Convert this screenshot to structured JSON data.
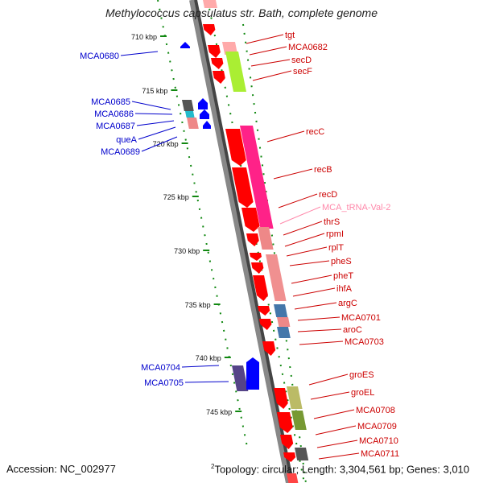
{
  "title": "Methylococcus capsulatus str. Bath, complete genome",
  "accession": "Accession: NC_002977",
  "topology_mark": "2",
  "topology": "Topology: circular; Length: 3,304,561 bp; Genes: 3,010",
  "colors": {
    "backbone": "#888888",
    "ruler": "#118811",
    "tick_label": "#111111",
    "minus_label": "#0000cc",
    "plus_label": "#cc0000",
    "trna_label": "#ff88aa",
    "gene_red": "#ff0000",
    "gene_blue": "#0000ff"
  },
  "ruler": [
    {
      "label": "710 kbp"
    },
    {
      "label": "715 kbp"
    },
    {
      "label": "720 kbp"
    },
    {
      "label": "725 kbp"
    },
    {
      "label": "730 kbp"
    },
    {
      "label": "735 kbp"
    },
    {
      "label": "740 kbp"
    },
    {
      "label": "745 kbp"
    }
  ],
  "minus_genes": [
    {
      "name": "MCA0680"
    },
    {
      "name": "MCA0685"
    },
    {
      "name": "MCA0686"
    },
    {
      "name": "MCA0687"
    },
    {
      "name": "queA"
    },
    {
      "name": "MCA0689"
    },
    {
      "name": "MCA0704"
    },
    {
      "name": "MCA0705"
    }
  ],
  "plus_genes": [
    {
      "name": "tgt"
    },
    {
      "name": "MCA0682"
    },
    {
      "name": "secD"
    },
    {
      "name": "secF"
    },
    {
      "name": "recC"
    },
    {
      "name": "recB"
    },
    {
      "name": "recD"
    },
    {
      "name": "MCA_tRNA-Val-2"
    },
    {
      "name": "thrS"
    },
    {
      "name": "rpmI"
    },
    {
      "name": "rplT"
    },
    {
      "name": "pheS"
    },
    {
      "name": "pheT"
    },
    {
      "name": "ihfA"
    },
    {
      "name": "argC"
    },
    {
      "name": "MCA0701"
    },
    {
      "name": "aroC"
    },
    {
      "name": "MCA0703"
    },
    {
      "name": "groES"
    },
    {
      "name": "groEL"
    },
    {
      "name": "MCA0708"
    },
    {
      "name": "MCA0709"
    },
    {
      "name": "MCA0710"
    },
    {
      "name": "MCA0711"
    }
  ]
}
